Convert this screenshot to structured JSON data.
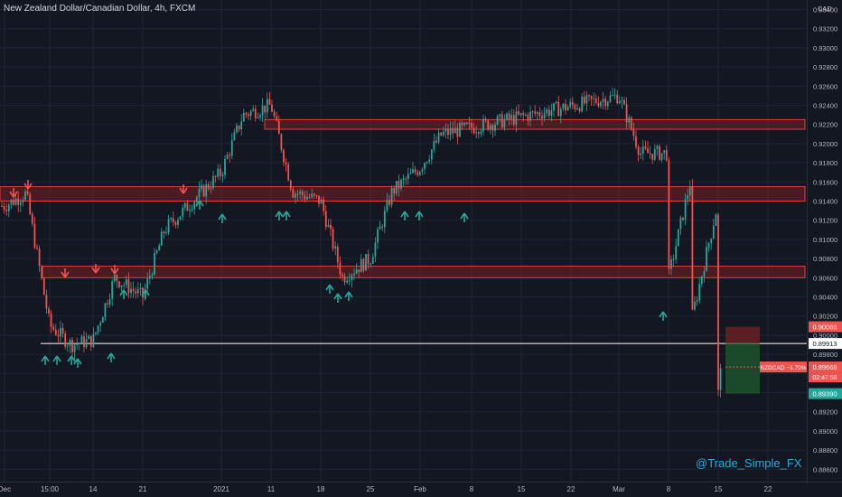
{
  "header": {
    "title": "New Zealand Dollar/Canadian Dollar, 4h, FXCM"
  },
  "watermark": "@Trade_Simple_FX",
  "colors": {
    "background": "#131722",
    "grid": "#1f2433",
    "up": "#26a69a",
    "down": "#ef5350",
    "zone_fill": "#7a1f22",
    "zone_border": "#e0403e",
    "axis_text": "#b2b5be",
    "watermark": "#2ea8d8"
  },
  "chart_data": {
    "type": "candlestick",
    "symbol": "NZDCAD",
    "timeframe": "4h",
    "source": "FXCM",
    "y_axis_unit": "CAD",
    "ylim": [
      0.886,
      0.935
    ],
    "y_ticks": [
      "0.93400",
      "0.93200",
      "0.93000",
      "0.92800",
      "0.92600",
      "0.92400",
      "0.92200",
      "0.92000",
      "0.91800",
      "0.91600",
      "0.91400",
      "0.91200",
      "0.91000",
      "0.90800",
      "0.90600",
      "0.90400",
      "0.90200",
      "0.90000",
      "0.89800",
      "0.89600",
      "0.89400",
      "0.89200",
      "0.89000",
      "0.88800",
      "0.88600"
    ],
    "x_ticks": [
      "Dec",
      "15:00",
      "14",
      "21",
      "2021",
      "11",
      "18",
      "25",
      "Feb",
      "8",
      "15",
      "22",
      "Mar",
      "8",
      "15",
      "22"
    ],
    "grid": true,
    "path_anchors": [
      [
        "Dec",
        0.9135
      ],
      [
        "Dec",
        0.9148
      ],
      [
        "15:00",
        0.901
      ],
      [
        "15:00",
        0.899
      ],
      [
        "14",
        0.8995
      ],
      [
        "14",
        0.906
      ],
      [
        "21",
        0.904
      ],
      [
        "21",
        0.911
      ],
      [
        "2021",
        0.917
      ],
      [
        "2021",
        0.923
      ],
      [
        "11",
        0.924
      ],
      [
        "11",
        0.915
      ],
      [
        "18",
        0.914
      ],
      [
        "18",
        0.906
      ],
      [
        "25",
        0.908
      ],
      [
        "25",
        0.915
      ],
      [
        "Feb",
        0.9175
      ],
      [
        "Feb",
        0.921
      ],
      [
        "8",
        0.919
      ],
      [
        "8",
        0.916
      ],
      [
        "15",
        0.914
      ],
      [
        "15",
        0.913
      ],
      [
        "22",
        0.922
      ],
      [
        "22",
        0.929
      ],
      [
        "Mar",
        0.925
      ],
      [
        "Mar",
        0.919
      ],
      [
        "8",
        0.906
      ],
      [
        "8",
        0.901
      ],
      [
        "15",
        0.894
      ],
      [
        "15",
        0.8966
      ]
    ],
    "zones": [
      {
        "name": "resistance-zone",
        "top": 0.9225,
        "bottom": 0.9215
      },
      {
        "name": "upper-zone",
        "top": 0.9155,
        "bottom": 0.914
      },
      {
        "name": "lower-zone",
        "top": 0.9072,
        "bottom": 0.906
      }
    ],
    "horizontal_line": 0.89913,
    "position_box": {
      "stop": 0.90088,
      "entry": 0.89913,
      "target": 0.8939
    },
    "price_labels": [
      {
        "name": "stop-price-label",
        "text": "0.90088",
        "value": 0.90088,
        "color": "#ef5350"
      },
      {
        "name": "entry-price-label",
        "text": "0.89913",
        "value": 0.89913,
        "color": "#ffffff"
      },
      {
        "name": "current-price-label",
        "text": "0.89668",
        "value": 0.89668,
        "color": "#ef5350"
      },
      {
        "name": "target-price-label",
        "text": "0.89390",
        "value": 0.8939,
        "color": "#26a69a"
      }
    ],
    "countdown": "02:47:58",
    "symbol_tag": "NZDCAD −1.70%"
  }
}
